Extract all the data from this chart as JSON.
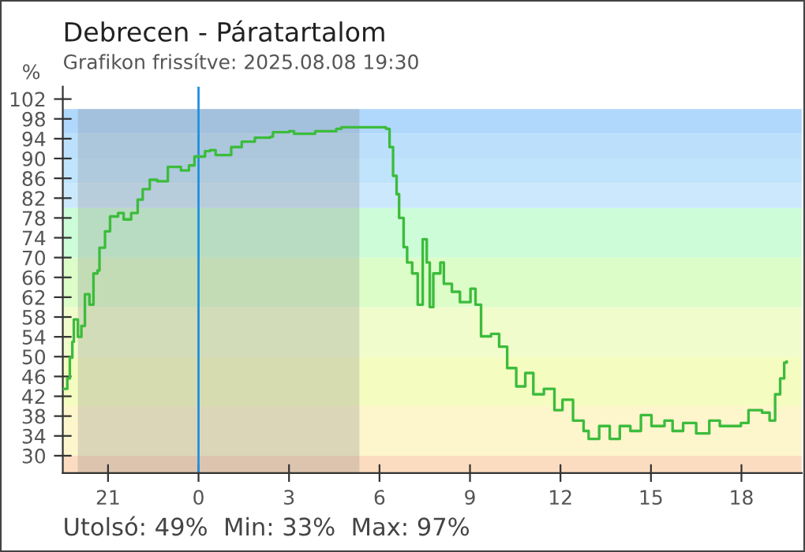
{
  "chart_data": {
    "type": "step",
    "title": "Debrecen - Páratartalom",
    "subtitle": "Grafikon frissítve: 2025.08.08 19:30",
    "ylabel": "%",
    "annotations": [
      "Utolsó: 49%  Min: 33%  Max: 97%"
    ],
    "series": [
      {
        "color": "#3cbc3c",
        "x": [
          "2025-08-07T19:30",
          "2025-08-07T19:39",
          "2025-08-07T19:44",
          "2025-08-07T19:49",
          "2025-08-07T19:52",
          "2025-08-07T20:00",
          "2025-08-07T20:07",
          "2025-08-07T20:14",
          "2025-08-07T20:23",
          "2025-08-07T20:31",
          "2025-08-07T20:39",
          "2025-08-07T20:43",
          "2025-08-07T20:54",
          "2025-08-07T21:04",
          "2025-08-07T21:20",
          "2025-08-07T21:31",
          "2025-08-07T21:46",
          "2025-08-07T21:59",
          "2025-08-07T22:09",
          "2025-08-07T22:23",
          "2025-08-07T22:38",
          "2025-08-07T22:59",
          "2025-08-07T23:25",
          "2025-08-07T23:41",
          "2025-08-07T23:52",
          "2025-08-08T00:07",
          "2025-08-08T00:13",
          "2025-08-08T00:23",
          "2025-08-08T00:34",
          "2025-08-08T00:54",
          "2025-08-08T01:05",
          "2025-08-08T01:26",
          "2025-08-08T01:52",
          "2025-08-08T02:23",
          "2025-08-08T02:28",
          "2025-08-08T03:00",
          "2025-08-08T03:10",
          "2025-08-08T03:52",
          "2025-08-08T04:34",
          "2025-08-08T04:44",
          "2025-08-08T06:08",
          "2025-08-08T06:13",
          "2025-08-08T06:20",
          "2025-08-08T06:27",
          "2025-08-08T06:34",
          "2025-08-08T06:39",
          "2025-08-08T06:48",
          "2025-08-08T06:55",
          "2025-08-08T07:05",
          "2025-08-08T07:16",
          "2025-08-08T07:26",
          "2025-08-08T07:34",
          "2025-08-08T07:40",
          "2025-08-08T07:47",
          "2025-08-08T08:01",
          "2025-08-08T08:08",
          "2025-08-08T08:24",
          "2025-08-08T08:40",
          "2025-08-08T09:01",
          "2025-08-08T09:11",
          "2025-08-08T09:22",
          "2025-08-08T09:42",
          "2025-08-08T09:58",
          "2025-08-08T10:14",
          "2025-08-08T10:32",
          "2025-08-08T10:50",
          "2025-08-08T11:06",
          "2025-08-08T11:27",
          "2025-08-08T11:48",
          "2025-08-08T12:04",
          "2025-08-08T12:25",
          "2025-08-08T12:46",
          "2025-08-08T12:56",
          "2025-08-08T13:17",
          "2025-08-08T13:38",
          "2025-08-08T13:58",
          "2025-08-08T14:19",
          "2025-08-08T14:40",
          "2025-08-08T15:01",
          "2025-08-08T15:27",
          "2025-08-08T15:43",
          "2025-08-08T16:04",
          "2025-08-08T16:30",
          "2025-08-08T16:56",
          "2025-08-08T17:17",
          "2025-08-08T17:59",
          "2025-08-08T18:14",
          "2025-08-08T18:41",
          "2025-08-08T18:56",
          "2025-08-08T19:07",
          "2025-08-08T19:17",
          "2025-08-08T19:25",
          "2025-08-08T19:30"
        ],
        "values": [
          43.5,
          45.6,
          49.8,
          53,
          57.5,
          54,
          56.2,
          62.6,
          60.5,
          66.8,
          67.4,
          72,
          75.3,
          78.3,
          79,
          77.7,
          79,
          81.7,
          83.8,
          85.7,
          85.4,
          88.3,
          87.6,
          88.6,
          90.4,
          90.4,
          91.5,
          91.7,
          90.7,
          90.7,
          92.3,
          93.4,
          94.2,
          94.4,
          95.3,
          95.5,
          95,
          95.5,
          96,
          96.3,
          96.3,
          96,
          92.3,
          86.5,
          82.8,
          78,
          72.1,
          69,
          66.8,
          60.5,
          73.7,
          69,
          60,
          66.8,
          69,
          64.7,
          63.1,
          61,
          63.7,
          60.5,
          54.1,
          54.6,
          52,
          47.7,
          44,
          46.7,
          42.4,
          43.5,
          39.2,
          41.3,
          37.1,
          35,
          33.4,
          36,
          33.4,
          36,
          35,
          38.2,
          36,
          37.1,
          35,
          36.6,
          34.5,
          37.1,
          36,
          36.6,
          39.2,
          38.7,
          37.1,
          42.4,
          45.6,
          48.8,
          49
        ]
      }
    ],
    "xlim": [
      "2025-08-07T19:30",
      "2025-08-08T20:00"
    ],
    "xticks": [
      {
        "value": "2025-08-07T21:00",
        "label": "21"
      },
      {
        "value": "2025-08-08T00:00",
        "label": "0"
      },
      {
        "value": "2025-08-08T03:00",
        "label": "3"
      },
      {
        "value": "2025-08-08T06:00",
        "label": "6"
      },
      {
        "value": "2025-08-08T09:00",
        "label": "9"
      },
      {
        "value": "2025-08-08T12:00",
        "label": "12"
      },
      {
        "value": "2025-08-08T15:00",
        "label": "15"
      },
      {
        "value": "2025-08-08T18:00",
        "label": "18"
      }
    ],
    "ylim": [
      26.5,
      104.5
    ],
    "yticks": [
      30,
      34,
      38,
      42,
      46,
      50,
      54,
      58,
      62,
      66,
      70,
      74,
      78,
      82,
      86,
      90,
      94,
      98,
      102
    ],
    "bands": [
      {
        "axis": "y",
        "from": 26.5,
        "to": 30,
        "color": "#fcdcc0"
      },
      {
        "axis": "y",
        "from": 30,
        "to": 40,
        "color": "#fdf5cc"
      },
      {
        "axis": "y",
        "from": 40,
        "to": 50,
        "color": "#f5fcc0"
      },
      {
        "axis": "y",
        "from": 50,
        "to": 60,
        "color": "#f0fccc"
      },
      {
        "axis": "y",
        "from": 60,
        "to": 70,
        "color": "#dcfcc8"
      },
      {
        "axis": "y",
        "from": 70,
        "to": 80,
        "color": "#ccfcd8"
      },
      {
        "axis": "y",
        "from": 80,
        "to": 85,
        "color": "#cce8fc"
      },
      {
        "axis": "y",
        "from": 85,
        "to": 90,
        "color": "#c0e4fc"
      },
      {
        "axis": "y",
        "from": 90,
        "to": 95,
        "color": "#bce0fc"
      },
      {
        "axis": "y",
        "from": 95,
        "to": 100,
        "color": "#b0d8fc"
      },
      {
        "axis": "x",
        "from": "2025-08-07T20:00",
        "to": "2025-08-08T05:20",
        "color": "#7a7a7a"
      }
    ],
    "ref_lines": [
      {
        "axis": "x",
        "value": "2025-08-08T00:00",
        "color": "#1e90e0"
      }
    ],
    "grid": false,
    "legend": false
  }
}
